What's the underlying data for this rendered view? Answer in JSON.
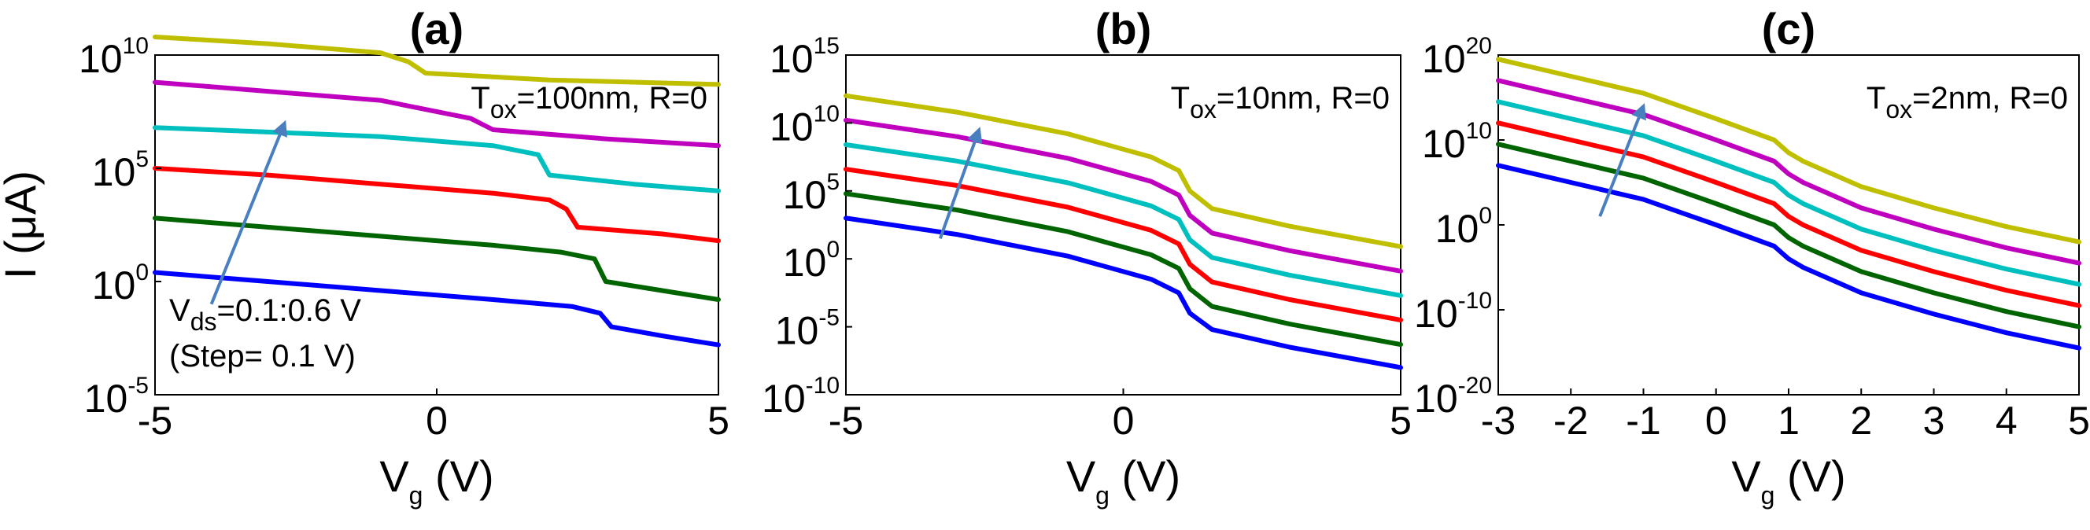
{
  "chart_data": [
    {
      "type": "line",
      "title": "(a)",
      "xlabel": "V",
      "xlabel_sub": "g",
      "xlabel_unit": " (V)",
      "ylabel": "I (μA)",
      "yscale": "log",
      "xlim": [
        -5,
        5
      ],
      "ylim_exp": [
        -5,
        10
      ],
      "x_ticks": [
        "-5",
        "0",
        "5"
      ],
      "y_ticks": [
        {
          "base": "10",
          "exp": "10"
        },
        {
          "base": "10",
          "exp": "5"
        },
        {
          "base": "10",
          "exp": "0"
        },
        {
          "base": "10",
          "exp": "-5"
        }
      ],
      "annotation": {
        "pre": "T",
        "sub": "ox",
        "post": "=100nm, R=0"
      },
      "vds_note": {
        "line1_pre": "V",
        "line1_sub": "ds",
        "line1_post": "=0.1:0.6 V",
        "line2": "(Step= 0.1 V)"
      },
      "arrow": {
        "from": [
          -4.0,
          -1.0
        ],
        "to": [
          -2.7,
          7.0
        ]
      },
      "series": [
        {
          "color": "#0000ff",
          "points": [
            [
              -5,
              0.4
            ],
            [
              -3,
              0.0
            ],
            [
              -1,
              -0.4
            ],
            [
              1,
              -0.8
            ],
            [
              2.4,
              -1.1
            ],
            [
              2.9,
              -1.4
            ],
            [
              3.1,
              -2.0
            ],
            [
              4,
              -2.4
            ],
            [
              5,
              -2.8
            ]
          ]
        },
        {
          "color": "#006400",
          "points": [
            [
              -5,
              2.8
            ],
            [
              -3,
              2.4
            ],
            [
              -1,
              2.0
            ],
            [
              1,
              1.6
            ],
            [
              2.2,
              1.3
            ],
            [
              2.8,
              1.0
            ],
            [
              3.0,
              0.0
            ],
            [
              4,
              -0.4
            ],
            [
              5,
              -0.8
            ]
          ]
        },
        {
          "color": "#ff0000",
          "points": [
            [
              -5,
              5.0
            ],
            [
              -3,
              4.7
            ],
            [
              -1,
              4.3
            ],
            [
              1,
              3.9
            ],
            [
              2.0,
              3.6
            ],
            [
              2.3,
              3.2
            ],
            [
              2.5,
              2.4
            ],
            [
              4,
              2.1
            ],
            [
              5,
              1.8
            ]
          ]
        },
        {
          "color": "#00bfbf",
          "points": [
            [
              -5,
              6.8
            ],
            [
              -3,
              6.6
            ],
            [
              -1,
              6.4
            ],
            [
              1,
              6.0
            ],
            [
              1.8,
              5.6
            ],
            [
              2.0,
              4.7
            ],
            [
              3.5,
              4.3
            ],
            [
              5,
              4.0
            ]
          ]
        },
        {
          "color": "#bf00bf",
          "points": [
            [
              -5,
              8.8
            ],
            [
              -3,
              8.4
            ],
            [
              -1,
              8.0
            ],
            [
              0.6,
              7.2
            ],
            [
              1,
              6.7
            ],
            [
              3,
              6.3
            ],
            [
              5,
              6.0
            ]
          ]
        },
        {
          "color": "#bfbf00",
          "points": [
            [
              -5,
              10.8
            ],
            [
              -3,
              10.5
            ],
            [
              -1,
              10.1
            ],
            [
              -0.5,
              9.7
            ],
            [
              -0.2,
              9.2
            ],
            [
              2,
              8.9
            ],
            [
              5,
              8.7
            ]
          ]
        }
      ]
    },
    {
      "type": "line",
      "title": "(b)",
      "xlabel": "V",
      "xlabel_sub": "g",
      "xlabel_unit": " (V)",
      "ylabel": "",
      "yscale": "log",
      "xlim": [
        -5,
        5
      ],
      "ylim_exp": [
        -10,
        15
      ],
      "x_ticks": [
        "-5",
        "0",
        "5"
      ],
      "y_ticks": [
        {
          "base": "10",
          "exp": "15"
        },
        {
          "base": "10",
          "exp": "10"
        },
        {
          "base": "10",
          "exp": "5"
        },
        {
          "base": "10",
          "exp": "0"
        },
        {
          "base": "10",
          "exp": "-5"
        },
        {
          "base": "10",
          "exp": "-10"
        }
      ],
      "annotation": {
        "pre": "T",
        "sub": "ox",
        "post": "=10nm, R=0"
      },
      "arrow": {
        "from": [
          -3.3,
          1.5
        ],
        "to": [
          -2.6,
          9.5
        ]
      },
      "series": [
        {
          "color": "#0000ff",
          "points": [
            [
              -5,
              3.0
            ],
            [
              -3,
              1.8
            ],
            [
              -1,
              0.2
            ],
            [
              0.5,
              -1.5
            ],
            [
              1.0,
              -2.5
            ],
            [
              1.2,
              -4.0
            ],
            [
              1.6,
              -5.2
            ],
            [
              3,
              -6.5
            ],
            [
              5,
              -8.0
            ]
          ]
        },
        {
          "color": "#006400",
          "points": [
            [
              -5,
              4.8
            ],
            [
              -3,
              3.6
            ],
            [
              -1,
              2.0
            ],
            [
              0.5,
              0.3
            ],
            [
              1.0,
              -0.7
            ],
            [
              1.2,
              -2.2
            ],
            [
              1.6,
              -3.5
            ],
            [
              3,
              -4.8
            ],
            [
              5,
              -6.3
            ]
          ]
        },
        {
          "color": "#ff0000",
          "points": [
            [
              -5,
              6.6
            ],
            [
              -3,
              5.4
            ],
            [
              -1,
              3.8
            ],
            [
              0.5,
              2.1
            ],
            [
              1.0,
              1.1
            ],
            [
              1.2,
              -0.4
            ],
            [
              1.6,
              -1.7
            ],
            [
              3,
              -3.0
            ],
            [
              5,
              -4.5
            ]
          ]
        },
        {
          "color": "#00bfbf",
          "points": [
            [
              -5,
              8.4
            ],
            [
              -3,
              7.2
            ],
            [
              -1,
              5.6
            ],
            [
              0.5,
              3.9
            ],
            [
              1.0,
              2.9
            ],
            [
              1.2,
              1.4
            ],
            [
              1.6,
              0.1
            ],
            [
              3,
              -1.2
            ],
            [
              5,
              -2.7
            ]
          ]
        },
        {
          "color": "#bf00bf",
          "points": [
            [
              -5,
              10.2
            ],
            [
              -3,
              9.0
            ],
            [
              -1,
              7.4
            ],
            [
              0.5,
              5.7
            ],
            [
              1.0,
              4.7
            ],
            [
              1.2,
              3.2
            ],
            [
              1.6,
              1.9
            ],
            [
              3,
              0.6
            ],
            [
              5,
              -0.9
            ]
          ]
        },
        {
          "color": "#bfbf00",
          "points": [
            [
              -5,
              12.0
            ],
            [
              -3,
              10.8
            ],
            [
              -1,
              9.2
            ],
            [
              0.5,
              7.5
            ],
            [
              1.0,
              6.5
            ],
            [
              1.2,
              5.0
            ],
            [
              1.6,
              3.7
            ],
            [
              3,
              2.4
            ],
            [
              5,
              0.9
            ]
          ]
        }
      ]
    },
    {
      "type": "line",
      "title": "(c)",
      "xlabel": "V",
      "xlabel_sub": "g",
      "xlabel_unit": " (V)",
      "ylabel": "",
      "yscale": "log",
      "xlim": [
        -3,
        5
      ],
      "ylim_exp": [
        -20,
        20
      ],
      "x_ticks": [
        "-3",
        "-2",
        "-1",
        "0",
        "1",
        "2",
        "3",
        "4",
        "5"
      ],
      "y_ticks": [
        {
          "base": "10",
          "exp": "20"
        },
        {
          "base": "10",
          "exp": "10"
        },
        {
          "base": "10",
          "exp": "0"
        },
        {
          "base": "10",
          "exp": "-10"
        },
        {
          "base": "10",
          "exp": "-20"
        }
      ],
      "annotation": {
        "pre": "T",
        "sub": "ox",
        "post": "=2nm, R=0"
      },
      "arrow": {
        "from": [
          -1.6,
          1.0
        ],
        "to": [
          -1.0,
          14.0
        ]
      },
      "series": [
        {
          "color": "#0000ff",
          "points": [
            [
              -3,
              7.0
            ],
            [
              -2,
              5.0
            ],
            [
              -1,
              3.0
            ],
            [
              0,
              0.0
            ],
            [
              0.8,
              -2.5
            ],
            [
              1.0,
              -4.0
            ],
            [
              1.2,
              -5.0
            ],
            [
              2,
              -8.0
            ],
            [
              3,
              -10.5
            ],
            [
              4,
              -12.7
            ],
            [
              5,
              -14.5
            ]
          ]
        },
        {
          "color": "#006400",
          "points": [
            [
              -3,
              9.5
            ],
            [
              -2,
              7.5
            ],
            [
              -1,
              5.5
            ],
            [
              0,
              2.5
            ],
            [
              0.8,
              0.0
            ],
            [
              1.0,
              -1.5
            ],
            [
              1.2,
              -2.5
            ],
            [
              2,
              -5.5
            ],
            [
              3,
              -8.0
            ],
            [
              4,
              -10.2
            ],
            [
              5,
              -12.0
            ]
          ]
        },
        {
          "color": "#ff0000",
          "points": [
            [
              -3,
              12.0
            ],
            [
              -2,
              10.0
            ],
            [
              -1,
              8.0
            ],
            [
              0,
              5.0
            ],
            [
              0.8,
              2.5
            ],
            [
              1.0,
              1.0
            ],
            [
              1.2,
              0.0
            ],
            [
              2,
              -3.0
            ],
            [
              3,
              -5.5
            ],
            [
              4,
              -7.7
            ],
            [
              5,
              -9.5
            ]
          ]
        },
        {
          "color": "#00bfbf",
          "points": [
            [
              -3,
              14.5
            ],
            [
              -2,
              12.5
            ],
            [
              -1,
              10.5
            ],
            [
              0,
              7.5
            ],
            [
              0.8,
              5.0
            ],
            [
              1.0,
              3.5
            ],
            [
              1.2,
              2.5
            ],
            [
              2,
              -0.5
            ],
            [
              3,
              -3.0
            ],
            [
              4,
              -5.2
            ],
            [
              5,
              -7.0
            ]
          ]
        },
        {
          "color": "#bf00bf",
          "points": [
            [
              -3,
              17.0
            ],
            [
              -2,
              15.0
            ],
            [
              -1,
              13.0
            ],
            [
              0,
              10.0
            ],
            [
              0.8,
              7.5
            ],
            [
              1.0,
              6.0
            ],
            [
              1.2,
              5.0
            ],
            [
              2,
              2.0
            ],
            [
              3,
              -0.5
            ],
            [
              4,
              -2.7
            ],
            [
              5,
              -4.5
            ]
          ]
        },
        {
          "color": "#bfbf00",
          "points": [
            [
              -3,
              19.5
            ],
            [
              -2,
              17.5
            ],
            [
              -1,
              15.5
            ],
            [
              0,
              12.5
            ],
            [
              0.8,
              10.0
            ],
            [
              1.0,
              8.5
            ],
            [
              1.2,
              7.5
            ],
            [
              2,
              4.5
            ],
            [
              3,
              2.0
            ],
            [
              4,
              -0.2
            ],
            [
              5,
              -2.0
            ]
          ]
        }
      ]
    }
  ]
}
